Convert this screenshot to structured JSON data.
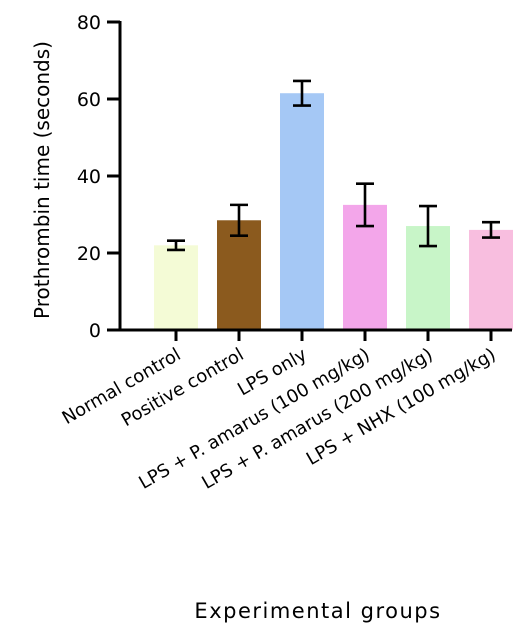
{
  "chart_data": {
    "type": "bar",
    "xlabel": "Experimental groups",
    "ylabel": "Prothrombin time (seconds)",
    "ylim": [
      0,
      80
    ],
    "yticks": [
      "0",
      "20",
      "40",
      "60",
      "80"
    ],
    "ytick_values": [
      0,
      20,
      40,
      60,
      80
    ],
    "categories": [
      "Normal control",
      "Positive control",
      "LPS only",
      "LPS + P. amarus (100 mg/kg)",
      "LPS + P. amarus (200 mg/kg)",
      "LPS + NHX (100 mg/kg)"
    ],
    "values": [
      22,
      28.5,
      61.5,
      32.5,
      27,
      26
    ],
    "errors": [
      1.2,
      4,
      3.2,
      5.5,
      5.2,
      2
    ],
    "colors": [
      "#f4fbd6",
      "#8b5a1e",
      "#a5c8f5",
      "#f3a6ea",
      "#c8f5c8",
      "#f8bedf"
    ],
    "grid": false,
    "legend": "none"
  }
}
